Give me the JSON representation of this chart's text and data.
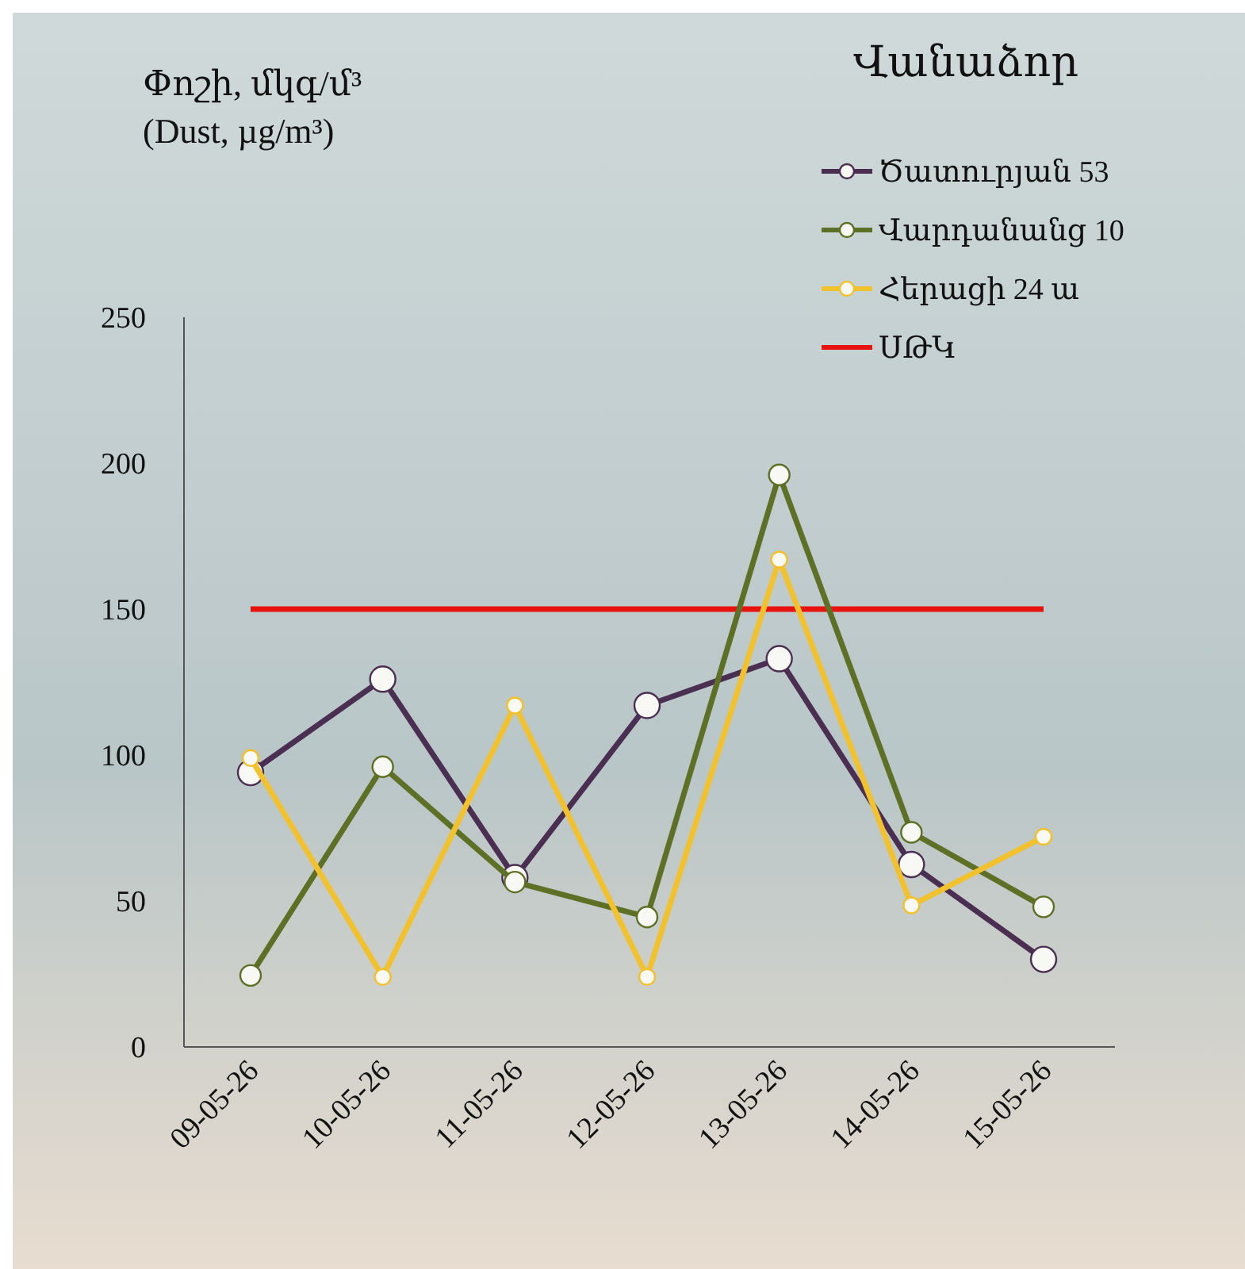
{
  "chart_data": {
    "type": "line",
    "ylabel": "Փոշի, մկգ/մ³\n(Dust, µg/m³)",
    "legend_title": "Վանաձոր",
    "categories": [
      "09-05-26",
      "10-05-26",
      "11-05-26",
      "12-05-26",
      "13-05-26",
      "14-05-26",
      "15-05-26"
    ],
    "series": [
      {
        "name": "Ծատուրյան 53",
        "color": "#4b2f52",
        "values": [
          94,
          126,
          58,
          117,
          133,
          62.5,
          30
        ]
      },
      {
        "name": "Վարդանանց 10",
        "color": "#5e7025",
        "values": [
          24.5,
          96,
          56.5,
          44.5,
          196,
          73.5,
          48
        ]
      },
      {
        "name": "Հերացի 24 ա",
        "color": "#f2c12e",
        "values": [
          99,
          24,
          117,
          24,
          167,
          48.5,
          72
        ]
      }
    ],
    "ref_lines": [
      {
        "axis": "y",
        "value": 150,
        "label": "ՍԹԿ",
        "color": "#e8120e"
      }
    ],
    "ylim": [
      0,
      250
    ],
    "yticks": [
      0,
      50,
      100,
      150,
      200,
      250
    ],
    "grid": false,
    "legend": "top right",
    "marker": "circle",
    "line_style": "solid"
  }
}
